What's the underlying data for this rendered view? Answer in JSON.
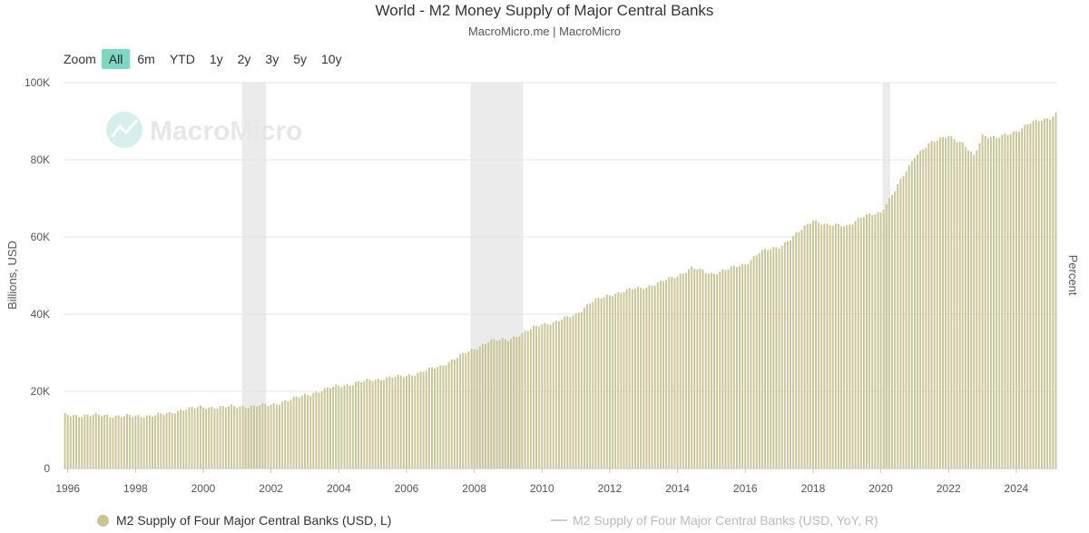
{
  "header": {
    "title": "World - M2 Money Supply of Major Central Banks",
    "subtitle": "MacroMicro.me | MacroMicro"
  },
  "zoom": {
    "label": "Zoom",
    "buttons": [
      "All",
      "6m",
      "YTD",
      "1y",
      "2y",
      "3y",
      "5y",
      "10y"
    ],
    "active": "All"
  },
  "watermark": {
    "text": "MacroMicro"
  },
  "colors": {
    "bars": "#c8c596",
    "recession": "#ebebeb",
    "grid": "#e6e6e6",
    "accent": "#7ed7c1",
    "series2": "#cccccc"
  },
  "chart_data": {
    "type": "bar",
    "ylabel": "Billions, USD",
    "ylabel_right": "Percent",
    "ylim": [
      0,
      100000
    ],
    "y_ticks": [
      0,
      20000,
      40000,
      60000,
      80000,
      100000
    ],
    "y_tick_labels": [
      "0",
      "20K",
      "40K",
      "60K",
      "80K",
      "100K"
    ],
    "x_ticks": [
      "1996",
      "1998",
      "2000",
      "2002",
      "2004",
      "2006",
      "2008",
      "2010",
      "2012",
      "2014",
      "2016",
      "2018",
      "2020",
      "2022",
      "2024"
    ],
    "x_range": [
      "1995-12",
      "2025-03"
    ],
    "recession_periods": [
      [
        "2001-03",
        "2001-11"
      ],
      [
        "2007-12",
        "2009-06"
      ],
      [
        "2020-02",
        "2020-04"
      ]
    ],
    "grid": true,
    "legend_position": "bottom",
    "series": [
      {
        "name": "M2 Supply of Four Major Central Banks (USD, L)",
        "frequency": "monthly",
        "anchors": [
          [
            "1996-01",
            13800
          ],
          [
            "1997-01",
            13800
          ],
          [
            "1998-01",
            13500
          ],
          [
            "1999-01",
            14200
          ],
          [
            "1999-06",
            15500
          ],
          [
            "2000-01",
            15800
          ],
          [
            "2000-06",
            16000
          ],
          [
            "2001-01",
            16000
          ],
          [
            "2002-01",
            16500
          ],
          [
            "2002-06",
            17500
          ],
          [
            "2003-01",
            19000
          ],
          [
            "2003-06",
            20000
          ],
          [
            "2004-01",
            21500
          ],
          [
            "2004-06",
            22000
          ],
          [
            "2005-01",
            23000
          ],
          [
            "2005-06",
            23500
          ],
          [
            "2006-01",
            24000
          ],
          [
            "2006-06",
            25000
          ],
          [
            "2007-01",
            26500
          ],
          [
            "2007-06",
            28500
          ],
          [
            "2008-01",
            31000
          ],
          [
            "2008-06",
            33000
          ],
          [
            "2009-01",
            33500
          ],
          [
            "2009-06",
            35000
          ],
          [
            "2010-01",
            37500
          ],
          [
            "2010-06",
            38000
          ],
          [
            "2011-01",
            40000
          ],
          [
            "2011-06",
            43000
          ],
          [
            "2012-01",
            45000
          ],
          [
            "2012-06",
            46000
          ],
          [
            "2013-01",
            47000
          ],
          [
            "2013-06",
            48000
          ],
          [
            "2014-01",
            50000
          ],
          [
            "2014-06",
            52000
          ],
          [
            "2015-01",
            50500
          ],
          [
            "2015-06",
            51500
          ],
          [
            "2016-01",
            53000
          ],
          [
            "2016-06",
            56000
          ],
          [
            "2017-01",
            57500
          ],
          [
            "2017-06",
            60000
          ],
          [
            "2018-01",
            64500
          ],
          [
            "2018-06",
            63000
          ],
          [
            "2019-01",
            63000
          ],
          [
            "2019-06",
            65000
          ],
          [
            "2020-01",
            66500
          ],
          [
            "2020-06",
            72000
          ],
          [
            "2021-01",
            81000
          ],
          [
            "2021-06",
            84000
          ],
          [
            "2022-01",
            86500
          ],
          [
            "2022-06",
            84000
          ],
          [
            "2022-10",
            81000
          ],
          [
            "2023-01",
            86500
          ],
          [
            "2023-06",
            85500
          ],
          [
            "2024-01",
            87500
          ],
          [
            "2024-06",
            89500
          ],
          [
            "2025-01",
            91000
          ],
          [
            "2025-03",
            92000
          ]
        ]
      },
      {
        "name": "M2 Supply of Four Major Central Banks (USD, YoY, R)",
        "visible": false
      }
    ]
  }
}
